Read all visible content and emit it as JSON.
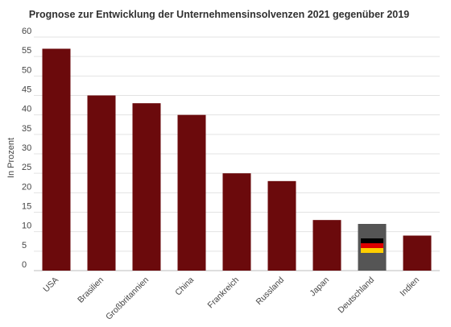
{
  "chart_data": {
    "type": "bar",
    "title": "Prognose zur Entwicklung der Unternehmensinsolvenzen 2021 gegenüber 2019",
    "ylabel": "In Prozent",
    "xlabel": "",
    "ylim": [
      0,
      60
    ],
    "yticks": [
      0,
      5,
      10,
      15,
      20,
      25,
      30,
      35,
      40,
      45,
      50,
      55,
      60
    ],
    "categories": [
      "USA",
      "Brasilien",
      "Großbritannien",
      "China",
      "Frankreich",
      "Russland",
      "Japan",
      "Deutschland",
      "Indien"
    ],
    "values": [
      57,
      45,
      43,
      40,
      25,
      23,
      13,
      12,
      9
    ],
    "grid": "horizontal",
    "colors": {
      "bar": "#6b0a0c",
      "highlight_bar": "#555555",
      "flag_black": "#000000",
      "flag_red": "#dd0000",
      "flag_gold": "#ffce00"
    },
    "highlight": {
      "category": "Deutschland",
      "icon": "german-flag-icon"
    }
  }
}
